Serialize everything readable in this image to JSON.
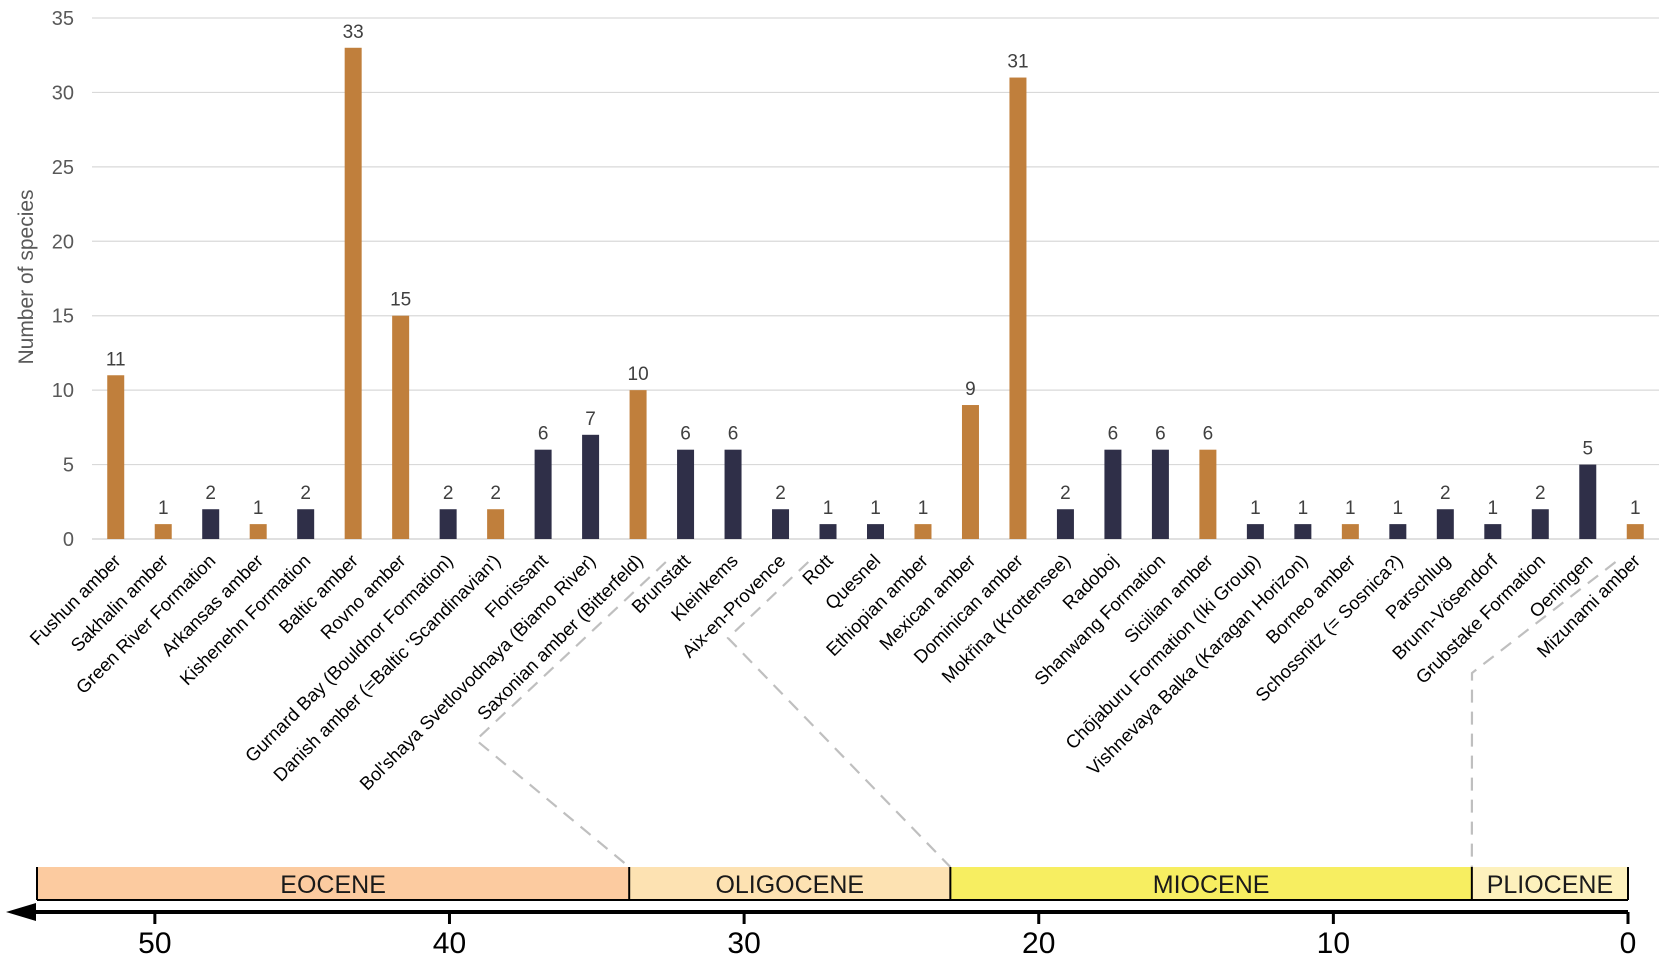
{
  "chart_data": {
    "type": "bar",
    "ylabel": "Number of species",
    "ylim": [
      0,
      35
    ],
    "y_ticks": [
      "0",
      "5",
      "10",
      "15",
      "20",
      "25",
      "30",
      "35"
    ],
    "grid": "horizontal",
    "colors": {
      "amber": "#c07f3c",
      "rock": "#2f2f48",
      "grid": "#d9d9d9",
      "connector": "#bfbfbf"
    },
    "categories": [
      "Fushun amber",
      "Sakhalin amber",
      "Green River Formation",
      "Arkansas amber",
      "Kishenehn Formation",
      "Baltic amber",
      "Rovno amber",
      "Gurnard Bay (Bouldnor Formation)",
      "Danish amber (=Baltic 'Scandinavian')",
      "Florissant",
      "Bol'shaya Svetlovodnaya (Biamo River)",
      "Saxonian amber (Bitterfeld)",
      "Brunstatt",
      "Kleinkems",
      "Aix-en-Provence",
      "Rott",
      "Quesnel",
      "Ethiopian amber",
      "Mexican amber",
      "Dominican amber",
      "Mokřina (Krottensee)",
      "Radoboj",
      "Shanwang Formation",
      "Sicilian amber",
      "Chōjaburu Formation (Iki Group)",
      "Vishnevaya Balka (Karagan Horizon)",
      "Borneo amber",
      "Schossnitz (= Sosnica?)",
      "Parschlug",
      "Brunn-Vösendorf",
      "Grubstake Formation",
      "Oeningen",
      "Mizunami amber"
    ],
    "values": [
      11,
      1,
      2,
      1,
      2,
      33,
      15,
      2,
      2,
      6,
      7,
      10,
      6,
      6,
      2,
      1,
      1,
      1,
      9,
      31,
      2,
      6,
      6,
      6,
      1,
      1,
      1,
      1,
      2,
      1,
      2,
      5,
      1
    ],
    "bar_kind": [
      "amber",
      "amber",
      "rock",
      "amber",
      "rock",
      "amber",
      "amber",
      "rock",
      "amber",
      "rock",
      "rock",
      "amber",
      "rock",
      "rock",
      "rock",
      "rock",
      "rock",
      "amber",
      "amber",
      "amber",
      "rock",
      "rock",
      "rock",
      "amber",
      "rock",
      "rock",
      "amber",
      "rock",
      "rock",
      "rock",
      "rock",
      "rock",
      "amber"
    ],
    "timescale": {
      "direction": "reversed",
      "domain": [
        54,
        0
      ],
      "ticks": [
        "50",
        "40",
        "30",
        "20",
        "10",
        "0"
      ],
      "tick_values": [
        50,
        40,
        30,
        20,
        10,
        0
      ],
      "epochs": [
        {
          "name": "EOCENE",
          "start": 54,
          "end": 33.9,
          "color": "#fccba0"
        },
        {
          "name": "OLIGOCENE",
          "start": 33.9,
          "end": 23,
          "color": "#fde2b2"
        },
        {
          "name": "MIOCENE",
          "start": 23,
          "end": 5.3,
          "color": "#f7ee61"
        },
        {
          "name": "PLIOCENE",
          "start": 5.3,
          "end": 0,
          "color": "#fdf1bd"
        }
      ]
    }
  }
}
